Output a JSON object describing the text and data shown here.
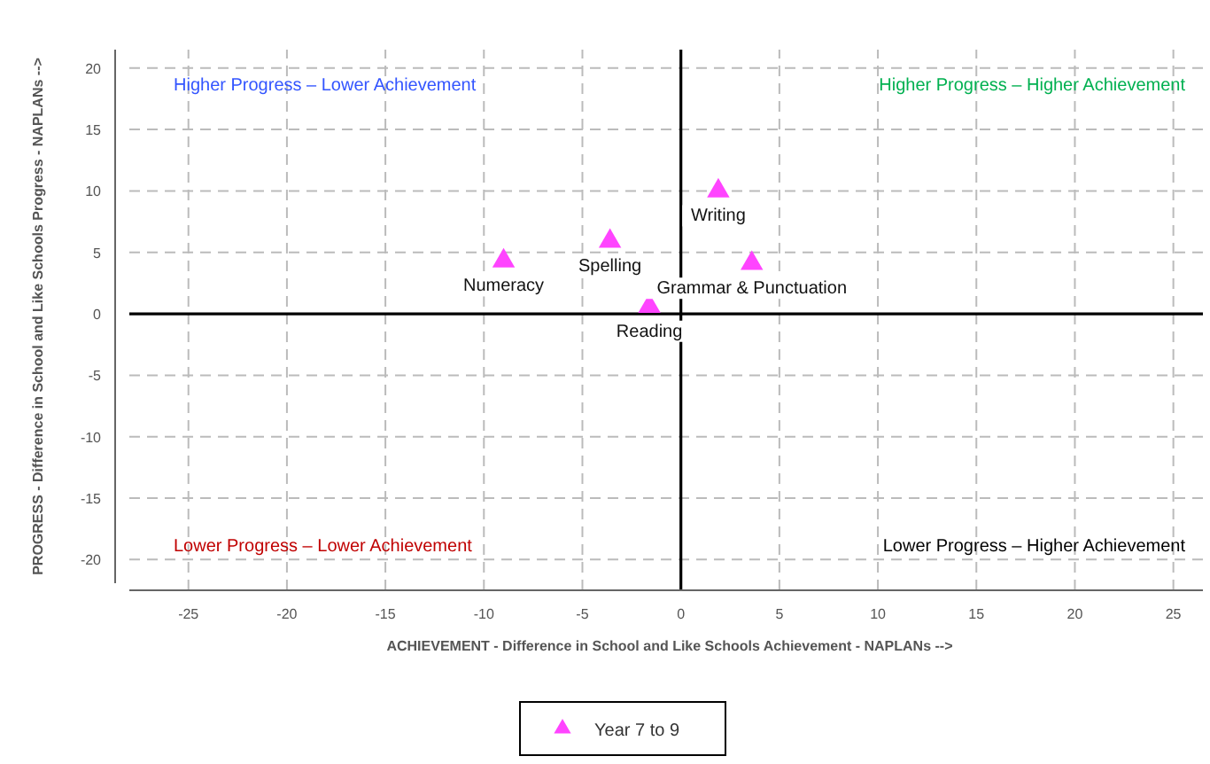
{
  "chart_data": {
    "type": "scatter",
    "xlabel": "ACHIEVEMENT - Difference in School and Like Schools Achievement - NAPLANs  -->",
    "ylabel": "PROGRESS - Difference in School and Like Schools Progress - NAPLANs  -->",
    "x": [
      -9.0,
      -3.6,
      -1.6,
      1.9,
      3.6
    ],
    "series": [
      {
        "name": "Year 7 to 9",
        "color": "#ff44ff",
        "values": [
          4.3,
          5.9,
          0.6,
          10,
          4.1
        ]
      }
    ],
    "marker": "triangle",
    "grid": true,
    "legend": "bottom",
    "xlim": [
      -28,
      26.5
    ],
    "ylim": [
      -22.5,
      21.5
    ],
    "xticks": [
      -25,
      -20,
      -15,
      -10,
      -5,
      0,
      5,
      10,
      15,
      20,
      25
    ],
    "yticks": [
      -20,
      -15,
      -10,
      -5,
      0,
      5,
      10,
      15,
      20
    ],
    "annotations": [
      "Higher Progress – Lower Achievement",
      "Higher Progress – Higher Achievement",
      "Lower Progress – Lower Achievement",
      "Lower Progress – Higher Achievement",
      {
        "text": "Numeracy",
        "x": -9.0,
        "y": 4.3
      },
      {
        "text": "Spelling",
        "x": -3.6,
        "y": 5.9
      },
      {
        "text": "Reading",
        "x": -1.6,
        "y": 0.6
      },
      {
        "text": "Writing",
        "x": 1.9,
        "y": 10
      },
      {
        "text": "Grammar & Punctuation",
        "x": 3.6,
        "y": 4.1
      }
    ]
  }
}
